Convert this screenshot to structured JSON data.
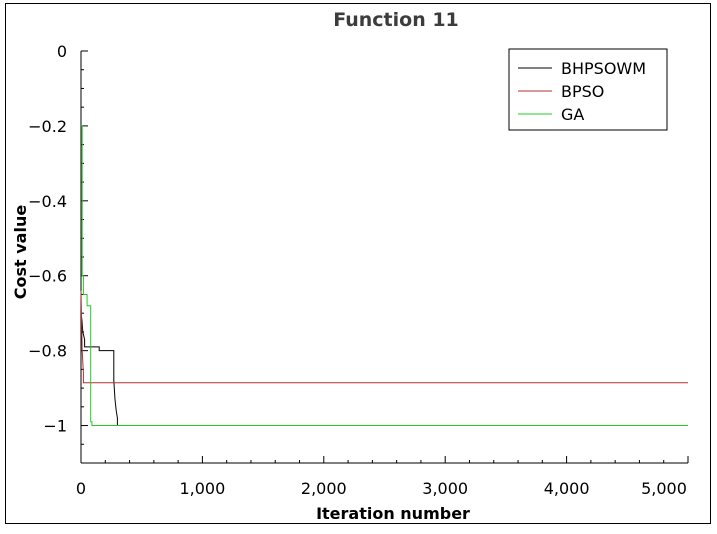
{
  "chart_data": {
    "type": "line",
    "title": "Function 11",
    "xlabel": "Iteration number",
    "ylabel": "Cost value",
    "xlim": [
      0,
      5000
    ],
    "ylim": [
      -1.1,
      0
    ],
    "x_ticks": [
      0,
      1000,
      2000,
      3000,
      4000,
      5000
    ],
    "x_tick_labels": [
      "0",
      "1,000",
      "2,000",
      "3,000",
      "4,000",
      "5,000"
    ],
    "y_ticks": [
      0,
      -0.2,
      -0.4,
      -0.6,
      -0.8,
      -1.0
    ],
    "y_tick_labels": [
      "0",
      "−0.2",
      "−0.4",
      "−0.6",
      "−0.8",
      "−1"
    ],
    "legend_position": "top-right",
    "series": [
      {
        "name": "BHPSOWM",
        "color": "#000000",
        "x": [
          0,
          8,
          15,
          30,
          30,
          150,
          150,
          270,
          270,
          280,
          290,
          300,
          300
        ],
        "y": [
          -0.7,
          -0.72,
          -0.75,
          -0.77,
          -0.79,
          -0.79,
          -0.8,
          -0.8,
          -0.88,
          -0.93,
          -0.96,
          -0.98,
          -1.0
        ]
      },
      {
        "name": "BPSO",
        "color": "#b03030",
        "x": [
          0,
          5,
          10,
          20,
          20,
          5000
        ],
        "y": [
          -0.64,
          -0.72,
          -0.8,
          -0.86,
          -0.886,
          -0.886
        ]
      },
      {
        "name": "GA",
        "color": "#22cc22",
        "x": [
          0,
          10,
          10,
          20,
          20,
          50,
          50,
          80,
          80,
          90,
          90,
          5000
        ],
        "y": [
          -0.2,
          -0.2,
          -0.6,
          -0.6,
          -0.65,
          -0.65,
          -0.68,
          -0.68,
          -0.99,
          -0.99,
          -1.0,
          -1.0
        ]
      }
    ]
  }
}
